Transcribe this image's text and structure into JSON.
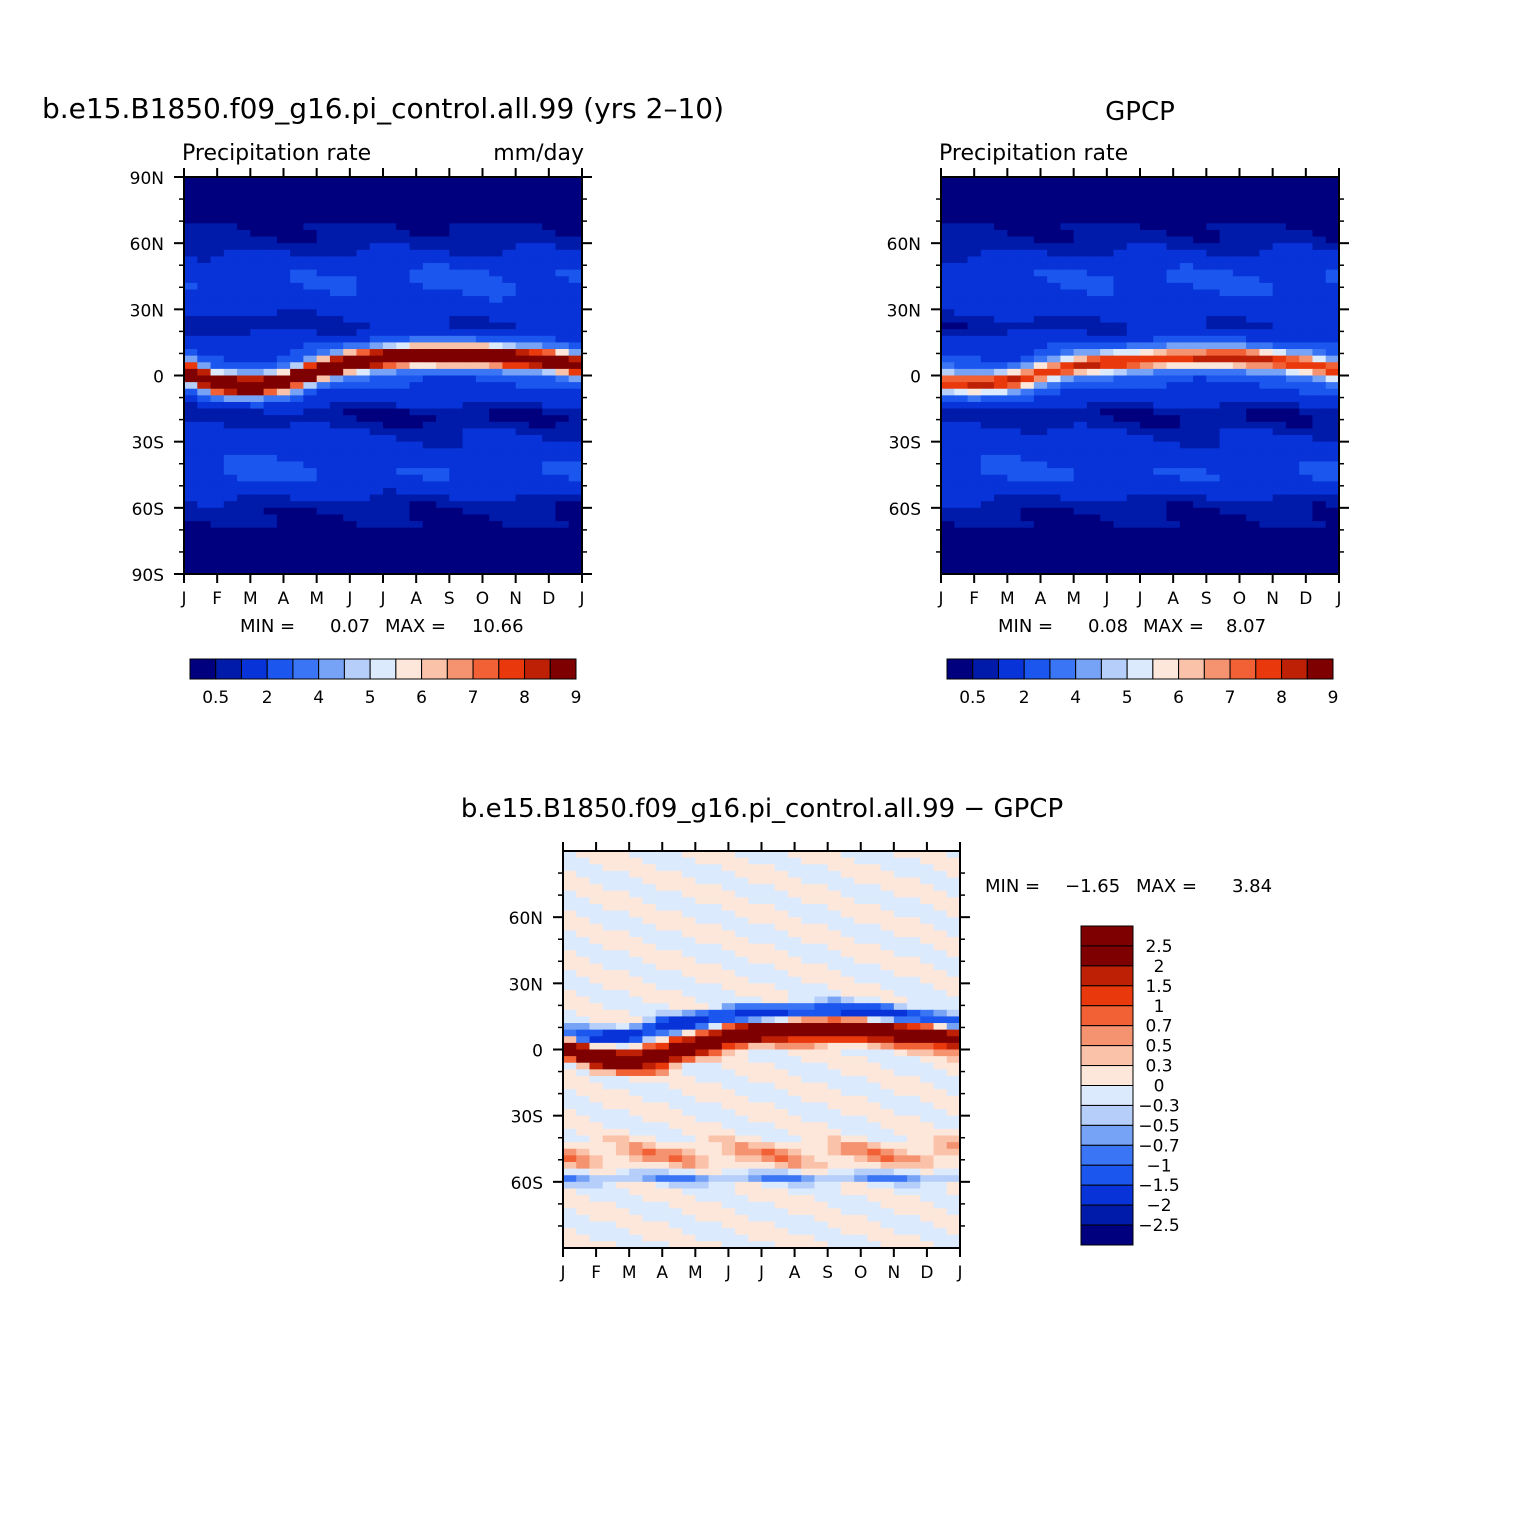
{
  "chart_data": [
    {
      "type": "heatmap",
      "id": "model",
      "title": "b.e15.B1850.f09_g16.pi_control.all.99 (yrs 2–10)",
      "subtitle_left": "Precipitation rate",
      "subtitle_right": "mm/day",
      "x_ticks": [
        "J",
        "F",
        "M",
        "A",
        "M",
        "J",
        "J",
        "A",
        "S",
        "O",
        "N",
        "D",
        "J"
      ],
      "y_ticks": [
        "90N",
        "60N",
        "30N",
        "0",
        "30S",
        "60S",
        "90S"
      ],
      "y_tick_values": [
        90,
        60,
        30,
        0,
        -30,
        -60,
        -90
      ],
      "ylim": [
        -90,
        90
      ],
      "min_label": "MIN =",
      "min_value": "0.07",
      "max_label": "MAX =",
      "max_value": "10.66",
      "colorbar_labels": [
        "0.5",
        "2",
        "4",
        "5",
        "6",
        "7",
        "8",
        "9"
      ],
      "itcz_peak_mm_day": 10.66,
      "itcz_center_lat_by_month": [
        2,
        -4,
        -5,
        -3,
        2,
        6,
        8,
        9,
        9,
        9,
        8,
        7,
        4
      ]
    },
    {
      "type": "heatmap",
      "id": "obs",
      "title": "GPCP",
      "subtitle_left": "Precipitation rate",
      "x_ticks": [
        "J",
        "F",
        "M",
        "A",
        "M",
        "J",
        "J",
        "A",
        "S",
        "O",
        "N",
        "D",
        "J"
      ],
      "y_ticks": [
        "60N",
        "30N",
        "0",
        "30S",
        "60S"
      ],
      "y_tick_values": [
        60,
        30,
        0,
        -30,
        -60
      ],
      "ylim": [
        -90,
        90
      ],
      "min_label": "MIN =",
      "min_value": "0.08",
      "max_label": "MAX =",
      "max_value": "8.07",
      "colorbar_labels": [
        "0.5",
        "2",
        "4",
        "5",
        "6",
        "7",
        "8",
        "9"
      ],
      "itcz_peak_mm_day": 8.07,
      "itcz_center_lat_by_month": [
        -3,
        -4,
        -3,
        1,
        4,
        6,
        7,
        8,
        8,
        8,
        7,
        5,
        2
      ]
    },
    {
      "type": "heatmap",
      "id": "diff",
      "title": "b.e15.B1850.f09_g16.pi_control.all.99  −  GPCP",
      "x_ticks": [
        "J",
        "F",
        "M",
        "A",
        "M",
        "J",
        "J",
        "A",
        "S",
        "O",
        "N",
        "D",
        "J"
      ],
      "y_ticks": [
        "60N",
        "30N",
        "0",
        "30S",
        "60S"
      ],
      "y_tick_values": [
        60,
        30,
        0,
        -30,
        -60
      ],
      "ylim": [
        -90,
        90
      ],
      "min_label": "MIN =",
      "min_value": "−1.65",
      "max_label": "MAX =",
      "max_value": "3.84",
      "colorbar_labels": [
        "2.5",
        "2",
        "1.5",
        "1",
        "0.7",
        "0.5",
        "0.3",
        "0",
        "−0.3",
        "−0.5",
        "−0.7",
        "−1",
        "−1.5",
        "−2",
        "−2.5"
      ]
    }
  ],
  "palettes": {
    "precip": [
      "#00007f",
      "#001aaa",
      "#0733d8",
      "#1b56ee",
      "#3a75f5",
      "#77a3f7",
      "#b5cffa",
      "#dceafd",
      "#fde7da",
      "#fbc2aa",
      "#f5926f",
      "#f26135",
      "#e9380b",
      "#bd2005",
      "#7f0000"
    ],
    "diff": [
      "#00007f",
      "#001aaa",
      "#0733d8",
      "#1b56ee",
      "#3a75f5",
      "#77a3f7",
      "#b5cffa",
      "#dceafd",
      "#fde7da",
      "#fbc2aa",
      "#f5926f",
      "#f26135",
      "#e9380b",
      "#bd2005",
      "#7f0000"
    ]
  }
}
